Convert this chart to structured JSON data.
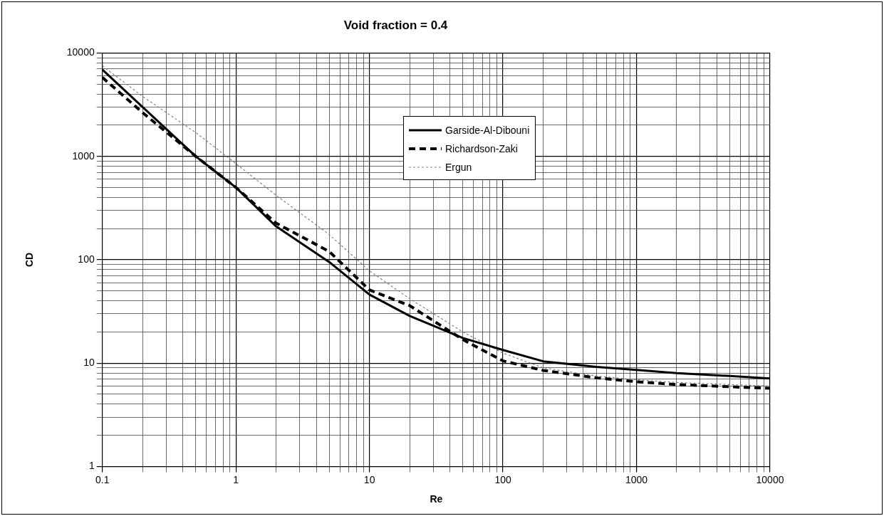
{
  "chart_data": {
    "type": "line",
    "title": "Void fraction = 0.4",
    "xlabel": "Re",
    "ylabel": "CD",
    "x": [
      0.1,
      0.2,
      0.5,
      1,
      2,
      5,
      10,
      20,
      50,
      100,
      200,
      500,
      1000,
      2000,
      5000,
      10000
    ],
    "series": [
      {
        "name": "Garside-Al-Dibouni",
        "color": "#000000",
        "line_style": "solid",
        "values": [
          6900,
          3000,
          1000,
          500,
          210,
          95,
          46,
          28.6,
          17.5,
          13.4,
          10.4,
          9.2,
          8.6,
          8.0,
          7.5,
          7.1
        ]
      },
      {
        "name": "Richardson-Zaki",
        "color": "#000000",
        "line_style": "dashed",
        "values": [
          5800,
          2650,
          1000,
          500,
          226,
          120,
          51,
          36,
          16.9,
          10.5,
          8.5,
          7.2,
          6.6,
          6.2,
          5.9,
          5.7
        ]
      },
      {
        "name": "Ergun",
        "color": "#808080",
        "line_style": "dotted",
        "values": [
          7500,
          3800,
          1700,
          850,
          420,
          175,
          78,
          42,
          20,
          12.5,
          9,
          7.5,
          6.9,
          6.5,
          6.2,
          6.0
        ]
      }
    ],
    "log": "xy",
    "xlim": [
      0.1,
      10000
    ],
    "ylim": [
      1,
      10000
    ],
    "xticks": [
      0.1,
      {
        "value": 0.2,
        "label": null
      },
      {
        "value": 0.3,
        "label": null
      },
      {
        "value": 0.4,
        "label": null
      },
      {
        "value": 0.5,
        "label": null
      },
      {
        "value": 0.6,
        "label": null
      },
      {
        "value": 0.7,
        "label": null
      },
      {
        "value": 0.8,
        "label": null
      },
      {
        "value": 0.9,
        "label": null
      },
      1,
      {
        "value": 2,
        "label": null
      },
      {
        "value": 3,
        "label": null
      },
      {
        "value": 4,
        "label": null
      },
      {
        "value": 5,
        "label": null
      },
      {
        "value": 6,
        "label": null
      },
      {
        "value": 7,
        "label": null
      },
      {
        "value": 8,
        "label": null
      },
      {
        "value": 9,
        "label": null
      },
      10,
      {
        "value": 20,
        "label": null
      },
      {
        "value": 30,
        "label": null
      },
      {
        "value": 40,
        "label": null
      },
      {
        "value": 50,
        "label": null
      },
      {
        "value": 60,
        "label": null
      },
      {
        "value": 70,
        "label": null
      },
      {
        "value": 80,
        "label": null
      },
      {
        "value": 90,
        "label": null
      },
      100,
      {
        "value": 200,
        "label": null
      },
      {
        "value": 300,
        "label": null
      },
      {
        "value": 400,
        "label": null
      },
      {
        "value": 500,
        "label": null
      },
      {
        "value": 600,
        "label": null
      },
      {
        "value": 700,
        "label": null
      },
      {
        "value": 800,
        "label": null
      },
      {
        "value": 900,
        "label": null
      },
      1000,
      {
        "value": 2000,
        "label": null
      },
      {
        "value": 3000,
        "label": null
      },
      {
        "value": 4000,
        "label": null
      },
      {
        "value": 5000,
        "label": null
      },
      {
        "value": 6000,
        "label": null
      },
      {
        "value": 7000,
        "label": null
      },
      {
        "value": 8000,
        "label": null
      },
      {
        "value": 9000,
        "label": null
      },
      10000
    ],
    "yticks": [
      1,
      {
        "value": 2,
        "label": null
      },
      {
        "value": 3,
        "label": null
      },
      {
        "value": 4,
        "label": null
      },
      {
        "value": 5,
        "label": null
      },
      {
        "value": 6,
        "label": null
      },
      {
        "value": 7,
        "label": null
      },
      {
        "value": 8,
        "label": null
      },
      {
        "value": 9,
        "label": null
      },
      10,
      {
        "value": 20,
        "label": null
      },
      {
        "value": 30,
        "label": null
      },
      {
        "value": 40,
        "label": null
      },
      {
        "value": 50,
        "label": null
      },
      {
        "value": 60,
        "label": null
      },
      {
        "value": 70,
        "label": null
      },
      {
        "value": 80,
        "label": null
      },
      {
        "value": 90,
        "label": null
      },
      100,
      {
        "value": 200,
        "label": null
      },
      {
        "value": 300,
        "label": null
      },
      {
        "value": 400,
        "label": null
      },
      {
        "value": 500,
        "label": null
      },
      {
        "value": 600,
        "label": null
      },
      {
        "value": 700,
        "label": null
      },
      {
        "value": 800,
        "label": null
      },
      {
        "value": 900,
        "label": null
      },
      1000,
      {
        "value": 2000,
        "label": null
      },
      {
        "value": 3000,
        "label": null
      },
      {
        "value": 4000,
        "label": null
      },
      {
        "value": 5000,
        "label": null
      },
      {
        "value": 6000,
        "label": null
      },
      {
        "value": 7000,
        "label": null
      },
      {
        "value": 8000,
        "label": null
      },
      {
        "value": 9000,
        "label": null
      },
      10000
    ],
    "grid": true,
    "legend": "top right",
    "marker": "none"
  }
}
